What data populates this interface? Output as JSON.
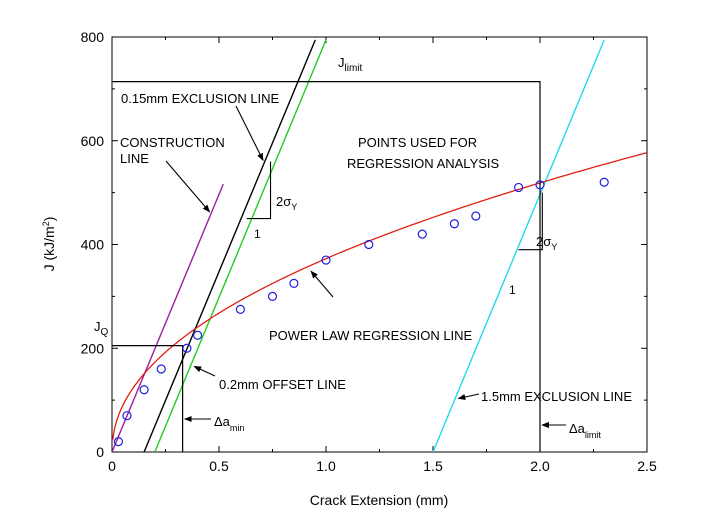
{
  "chart_data": {
    "type": "scatter",
    "xlabel": "Crack Extension (mm)",
    "ylabel_main": "J (kJ/m",
    "ylabel_sup": "2",
    "ylabel_tail": ")",
    "xlim": [
      0,
      2.5
    ],
    "ylim": [
      0,
      800
    ],
    "xticks": [
      0,
      0.5,
      1.0,
      1.5,
      2.0,
      2.5
    ],
    "xtick_labels": [
      "0",
      "0.5",
      "1.0",
      "1.5",
      "2.0",
      "2.5"
    ],
    "yticks": [
      0,
      200,
      400,
      600,
      800
    ],
    "ytick_labels": [
      "0",
      "200",
      "400",
      "600",
      "800"
    ],
    "colors": {
      "points": "#1f1fe0",
      "regression": "#e02010",
      "construction": "#9b1fa0",
      "offset": "#22cc22",
      "exclusion_015": "#000000",
      "exclusion_15": "#22d8e8",
      "frame": "#000000"
    },
    "points": [
      {
        "x": 0.03,
        "y": 20
      },
      {
        "x": 0.07,
        "y": 70
      },
      {
        "x": 0.15,
        "y": 120
      },
      {
        "x": 0.23,
        "y": 160
      },
      {
        "x": 0.35,
        "y": 200
      },
      {
        "x": 0.4,
        "y": 225
      },
      {
        "x": 0.6,
        "y": 275
      },
      {
        "x": 0.75,
        "y": 300
      },
      {
        "x": 0.85,
        "y": 325
      },
      {
        "x": 1.0,
        "y": 370
      },
      {
        "x": 1.2,
        "y": 400
      },
      {
        "x": 1.45,
        "y": 420
      },
      {
        "x": 1.6,
        "y": 440
      },
      {
        "x": 1.7,
        "y": 455
      },
      {
        "x": 1.9,
        "y": 510
      },
      {
        "x": 2.0,
        "y": 515
      },
      {
        "x": 2.3,
        "y": 520
      }
    ],
    "regression": {
      "C": 372.7,
      "n": 0.4771,
      "x_start": 0.003,
      "x_end": 2.5
    },
    "slope": 993,
    "construction_line": {
      "x0": 0.0,
      "x_end": 0.52
    },
    "exclusion_015_line": {
      "x0": 0.15,
      "x_end": 0.95
    },
    "offset_line": {
      "x0": 0.2,
      "x_end": 1.0
    },
    "exclusion_15_line": {
      "x0": 1.5,
      "x_end": 2.3
    },
    "J_limit": 714,
    "dA_limit": 2.0,
    "JQ": 205,
    "dA_min": 0.33,
    "slope_tri_left": {
      "x": 0.63,
      "y1": 450,
      "y2": 560
    },
    "slope_tri_right": {
      "x": 1.9,
      "y1": 390,
      "y2": 500
    },
    "labels": {
      "jlimit_main": "J",
      "jlimit_sub": "limit",
      "excl015": "0.15mm EXCLUSION LINE",
      "construction_1": "CONSTRUCTION",
      "construction_2": "LINE",
      "points_used_1": "POINTS USED FOR",
      "points_used_2": "REGRESSION ANALYSIS",
      "two_sigma": "2σ",
      "sigma_sub": "Y",
      "one": "1",
      "power_law": "POWER LAW REGRESSION LINE",
      "jq_main": "J",
      "jq_sub": "Q",
      "offset": "0.2mm OFFSET LINE",
      "excl15": "1.5mm EXCLUSION LINE",
      "damin_main": "Δa",
      "damin_sub": "min",
      "dalimit_main": "Δa",
      "dalimit_sub": "limit"
    }
  }
}
